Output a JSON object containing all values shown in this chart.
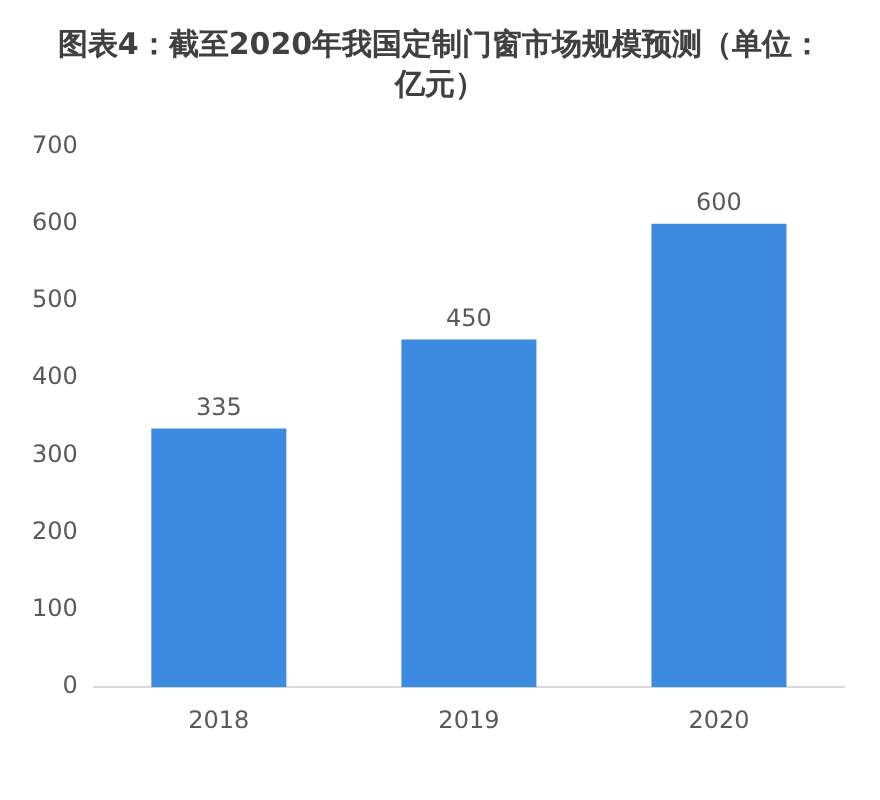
{
  "chart_data": {
    "type": "bar",
    "title": "图表4：截至2020年我国定制门窗市场规模预测（单位：亿元）",
    "categories": [
      "2018",
      "2019",
      "2020"
    ],
    "values": [
      335,
      450,
      600
    ],
    "color": "#3d8be0",
    "ylim": [
      0,
      700
    ],
    "yticks": [
      0,
      100,
      200,
      300,
      400,
      500,
      600,
      700
    ],
    "grid": false,
    "data_labels": true,
    "legend": false
  }
}
